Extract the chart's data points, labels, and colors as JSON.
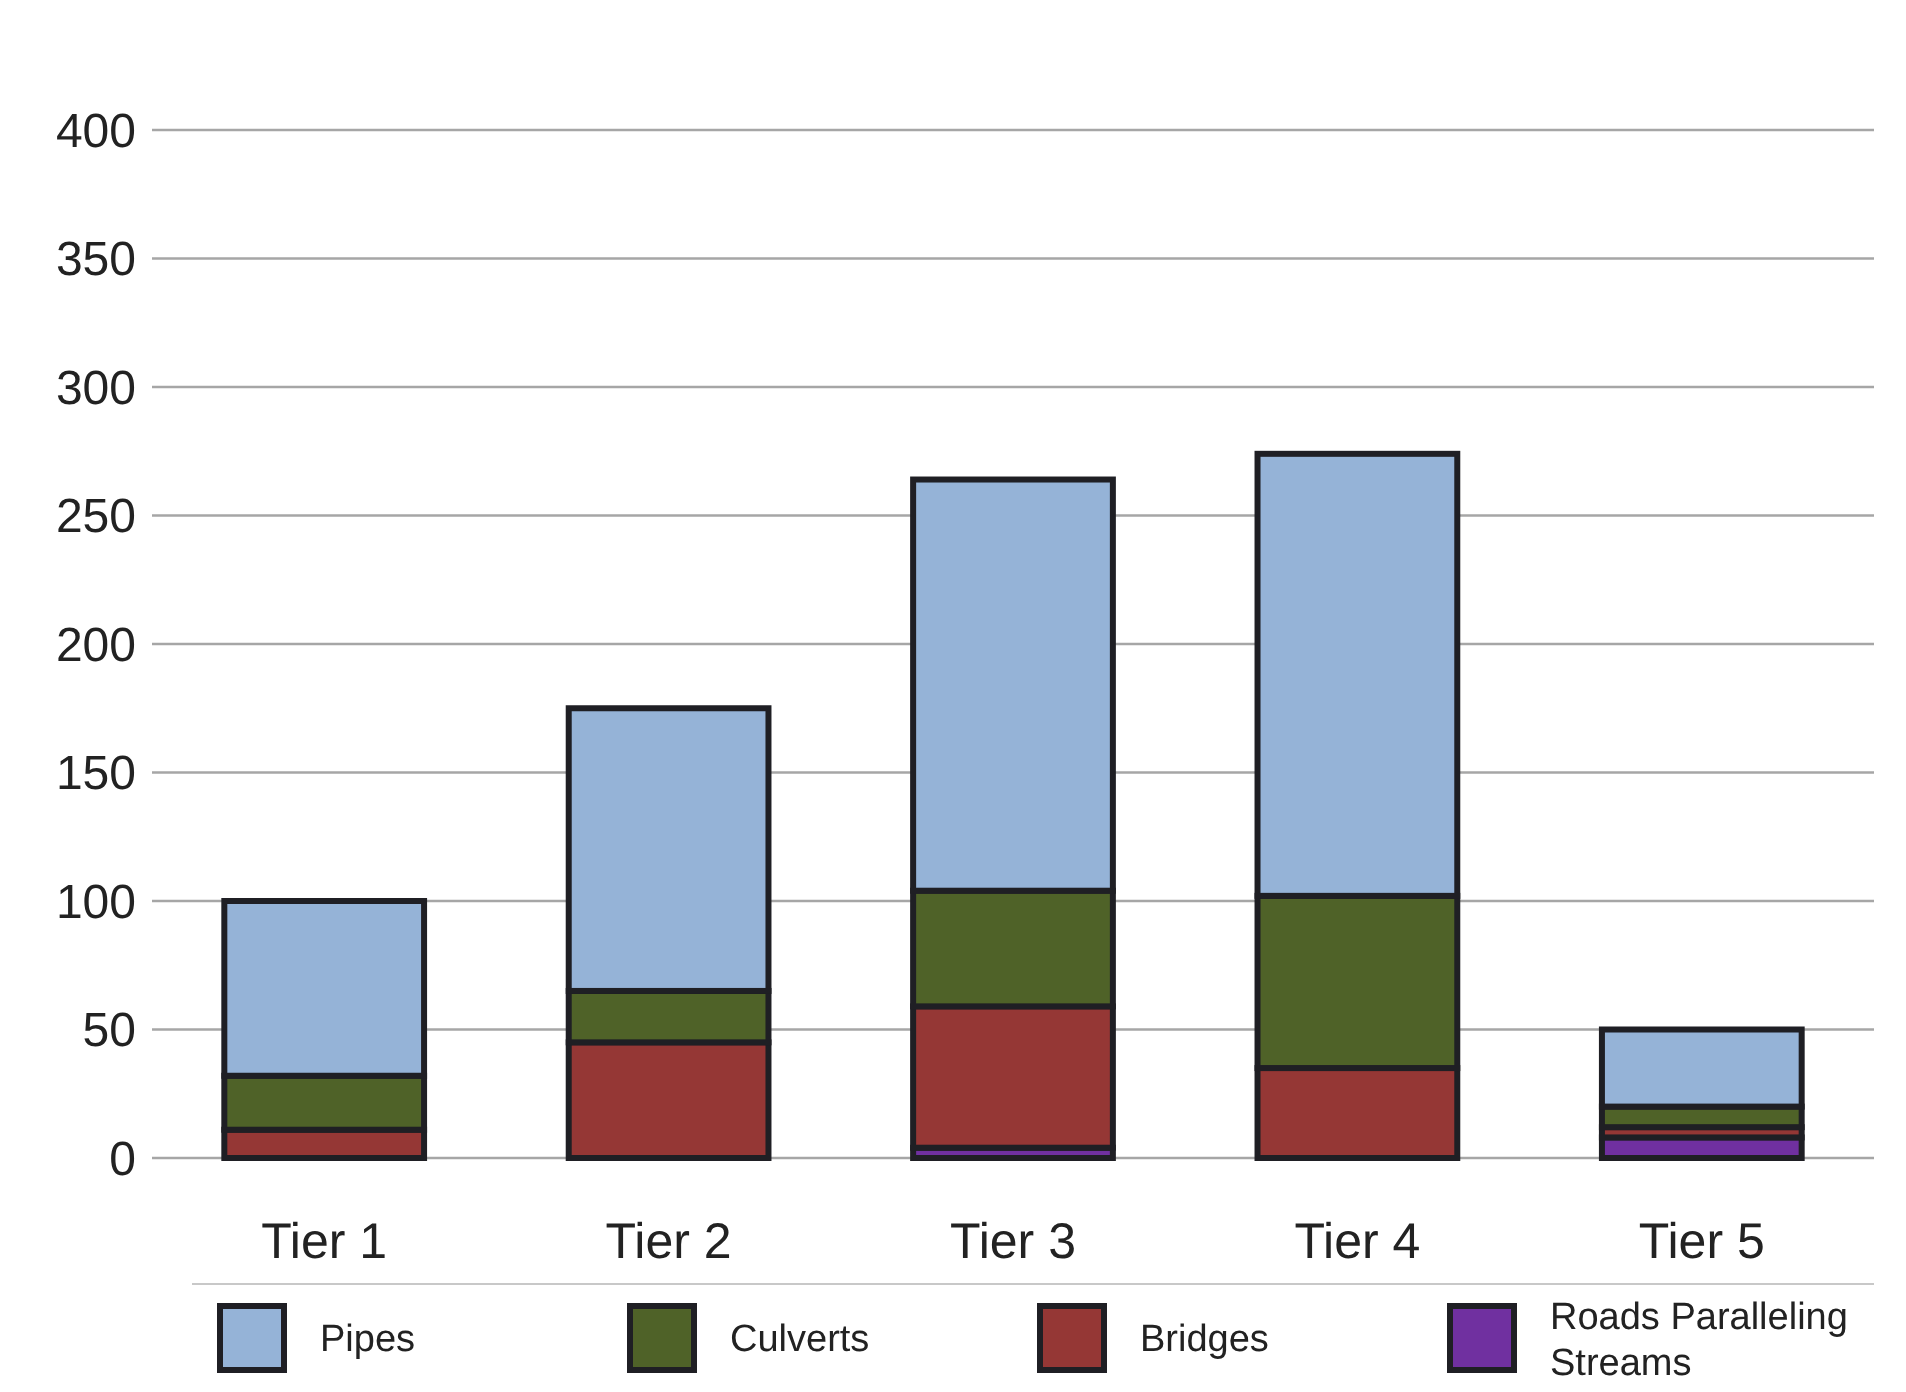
{
  "chart_data": {
    "type": "bar",
    "stacked": true,
    "categories": [
      "Tier 1",
      "Tier 2",
      "Tier 3",
      "Tier 4",
      "Tier 5"
    ],
    "series": [
      {
        "name": "Roads Paralleling Streams",
        "color": "#7030a0",
        "values": [
          0,
          0,
          4,
          null,
          8
        ]
      },
      {
        "name": "Bridges",
        "color": "#953735",
        "values": [
          11,
          45,
          55,
          35,
          4
        ]
      },
      {
        "name": "Culverts",
        "color": "#4f6228",
        "values": [
          21,
          20,
          45,
          67,
          8
        ]
      },
      {
        "name": "Pipes",
        "color": "#95b3d7",
        "values": [
          68,
          110,
          160,
          172,
          30
        ]
      }
    ],
    "ylim": [
      0,
      400
    ],
    "yticks": [
      0,
      50,
      100,
      150,
      200,
      250,
      300,
      350,
      400
    ],
    "grid": "y",
    "legend": "bottom"
  }
}
